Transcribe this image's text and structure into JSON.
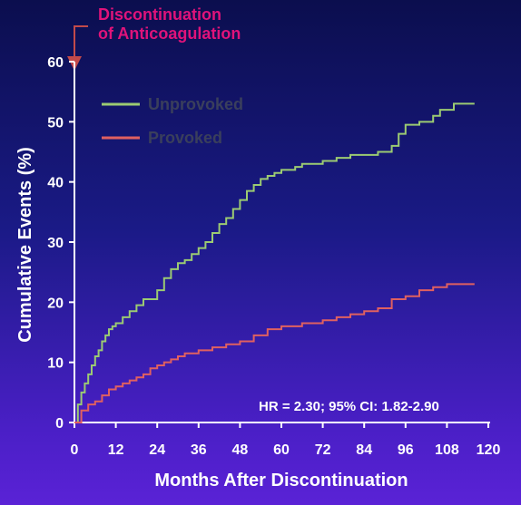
{
  "chart_data": {
    "type": "line",
    "step": true,
    "xlabel": "Months After Discontinuation",
    "ylabel": "Cumulative Events (%)",
    "xlim": [
      0,
      120
    ],
    "ylim": [
      0,
      60
    ],
    "xticks": [
      0,
      12,
      24,
      36,
      48,
      60,
      72,
      84,
      96,
      108,
      120
    ],
    "yticks": [
      0,
      10,
      20,
      30,
      40,
      50,
      60
    ],
    "grid": false,
    "legend_position": "top-left",
    "annotation": {
      "line1": "Discontinuation",
      "line2": "of Anticoagulation",
      "color": "#e0137a"
    },
    "stat_text": "HR = 2.30; 95% CI: 1.82-2.90",
    "series": [
      {
        "name": "Unprovoked",
        "color": "#9ccb72",
        "x": [
          0,
          1,
          2,
          3,
          4,
          5,
          6,
          7,
          8,
          9,
          10,
          11,
          12,
          14,
          16,
          18,
          20,
          24,
          26,
          28,
          30,
          32,
          34,
          36,
          38,
          40,
          42,
          44,
          46,
          48,
          50,
          52,
          54,
          56,
          58,
          60,
          62,
          64,
          66,
          68,
          72,
          76,
          80,
          84,
          88,
          92,
          94,
          96,
          100,
          104,
          106,
          110,
          116
        ],
        "y": [
          0,
          3,
          5,
          6.5,
          8,
          9.5,
          11,
          12,
          13.5,
          14.5,
          15.5,
          16,
          16.5,
          17.5,
          18.5,
          19.5,
          20.5,
          22,
          24,
          25.5,
          26.5,
          27,
          28,
          29,
          30,
          31.5,
          33,
          34,
          35.5,
          37,
          38.5,
          39.5,
          40.5,
          41,
          41.5,
          42,
          42,
          42.5,
          43,
          43,
          43.5,
          44,
          44.5,
          44.5,
          45,
          46,
          48,
          49.5,
          50,
          51,
          52,
          53,
          53
        ]
      },
      {
        "name": "Provoked",
        "color": "#e06060",
        "x": [
          0,
          2,
          4,
          6,
          8,
          10,
          12,
          14,
          16,
          18,
          20,
          22,
          24,
          26,
          28,
          30,
          32,
          36,
          40,
          44,
          48,
          52,
          56,
          60,
          66,
          72,
          76,
          80,
          84,
          88,
          92,
          96,
          100,
          104,
          108,
          116
        ],
        "y": [
          0,
          2,
          3,
          3.5,
          4.5,
          5.5,
          6,
          6.5,
          7,
          7.5,
          8,
          9,
          9.5,
          10,
          10.5,
          11,
          11.5,
          12,
          12.5,
          13,
          13.5,
          14.5,
          15.5,
          16,
          16.5,
          17,
          17.5,
          18,
          18.5,
          19,
          20.5,
          21,
          22,
          22.5,
          23,
          23
        ]
      }
    ]
  }
}
